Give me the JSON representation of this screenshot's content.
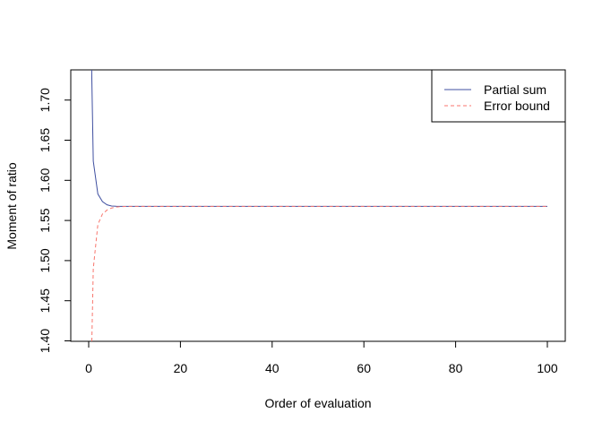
{
  "chart_data": {
    "type": "line",
    "xlabel": "Order of evaluation",
    "ylabel": "Moment of ratio",
    "xlim": [
      -4,
      104
    ],
    "ylim": [
      1.3965,
      1.7345
    ],
    "xticks": [
      0,
      20,
      40,
      60,
      80,
      100
    ],
    "yticks": [
      1.4,
      1.45,
      1.5,
      1.55,
      1.6,
      1.65,
      1.7
    ],
    "ytick_labels": [
      "1.40",
      "1.45",
      "1.50",
      "1.55",
      "1.60",
      "1.65",
      "1.70"
    ],
    "grid": false,
    "legend_position": "top-right",
    "x": [
      0,
      1,
      2,
      3,
      4,
      5,
      6,
      7,
      8,
      9,
      10,
      11,
      12,
      13,
      14,
      15,
      16,
      17,
      18,
      19,
      20,
      21,
      22,
      23,
      24,
      25,
      26,
      27,
      28,
      29,
      30,
      31,
      32,
      33,
      34,
      35,
      36,
      37,
      38,
      39,
      40,
      41,
      42,
      43,
      44,
      45,
      46,
      47,
      48,
      49,
      50,
      51,
      52,
      53,
      54,
      55,
      56,
      57,
      58,
      59,
      60,
      61,
      62,
      63,
      64,
      65,
      66,
      67,
      68,
      69,
      70,
      71,
      72,
      73,
      74,
      75,
      76,
      77,
      78,
      79,
      80,
      81,
      82,
      83,
      84,
      85,
      86,
      87,
      88,
      89,
      90,
      91,
      92,
      93,
      94,
      95,
      96,
      97,
      98,
      99,
      100
    ],
    "series": [
      {
        "name": "Partial sum",
        "color": "#3f4fa0",
        "linestyle": "solid",
        "values": [
          1.95,
          1.624,
          1.583,
          1.5735,
          1.5695,
          1.568,
          1.5677,
          1.5676,
          1.5675,
          1.5675,
          1.5675,
          1.5675,
          1.5675,
          1.5675,
          1.5675,
          1.5675,
          1.5675,
          1.5675,
          1.5675,
          1.5675,
          1.5675,
          1.5675,
          1.5675,
          1.5675,
          1.5675,
          1.5675,
          1.5675,
          1.5675,
          1.5675,
          1.5675,
          1.5675,
          1.5675,
          1.5675,
          1.5675,
          1.5675,
          1.5675,
          1.5675,
          1.5675,
          1.5675,
          1.5675,
          1.5675,
          1.5675,
          1.5675,
          1.5675,
          1.5675,
          1.5675,
          1.5675,
          1.5675,
          1.5675,
          1.5675,
          1.5675,
          1.5675,
          1.5675,
          1.5675,
          1.5675,
          1.5675,
          1.5675,
          1.5675,
          1.5675,
          1.5675,
          1.5675,
          1.5675,
          1.5675,
          1.5675,
          1.5675,
          1.5675,
          1.5675,
          1.5675,
          1.5675,
          1.5675,
          1.5675,
          1.5675,
          1.5675,
          1.5675,
          1.5675,
          1.5675,
          1.5675,
          1.5675,
          1.5675,
          1.5675,
          1.5675,
          1.5675,
          1.5675,
          1.5675,
          1.5675,
          1.5675,
          1.5675,
          1.5675,
          1.5675,
          1.5675,
          1.5675,
          1.5675,
          1.5675,
          1.5675,
          1.5675,
          1.5675,
          1.5675,
          1.5675,
          1.5675,
          1.5675,
          1.5675
        ]
      },
      {
        "name": "Error bound",
        "color": "#f8766d",
        "linestyle": "dashed",
        "values": [
          1.2,
          1.49,
          1.545,
          1.558,
          1.563,
          1.5655,
          1.5667,
          1.5672,
          1.5674,
          1.5675,
          1.5675,
          1.5675,
          1.5675,
          1.5675,
          1.5675,
          1.5675,
          1.5675,
          1.5675,
          1.5675,
          1.5675,
          1.5675,
          1.5675,
          1.5675,
          1.5675,
          1.5675,
          1.5675,
          1.5675,
          1.5675,
          1.5675,
          1.5675,
          1.5675,
          1.5675,
          1.5675,
          1.5675,
          1.5675,
          1.5675,
          1.5675,
          1.5675,
          1.5675,
          1.5675,
          1.5675,
          1.5675,
          1.5675,
          1.5675,
          1.5675,
          1.5675,
          1.5675,
          1.5675,
          1.5675,
          1.5675,
          1.5675,
          1.5675,
          1.5675,
          1.5675,
          1.5675,
          1.5675,
          1.5675,
          1.5675,
          1.5675,
          1.5675,
          1.5675,
          1.5675,
          1.5675,
          1.5675,
          1.5675,
          1.5675,
          1.5675,
          1.5675,
          1.5675,
          1.5675,
          1.5675,
          1.5675,
          1.5675,
          1.5675,
          1.5675,
          1.5675,
          1.5675,
          1.5675,
          1.5675,
          1.5675,
          1.5675,
          1.5675,
          1.5675,
          1.5675,
          1.5675,
          1.5675,
          1.5675,
          1.5675,
          1.5675,
          1.5675,
          1.5675,
          1.5675,
          1.5675,
          1.5675,
          1.5675,
          1.5675,
          1.5675,
          1.5675,
          1.5675,
          1.5675,
          1.5675
        ]
      }
    ]
  }
}
